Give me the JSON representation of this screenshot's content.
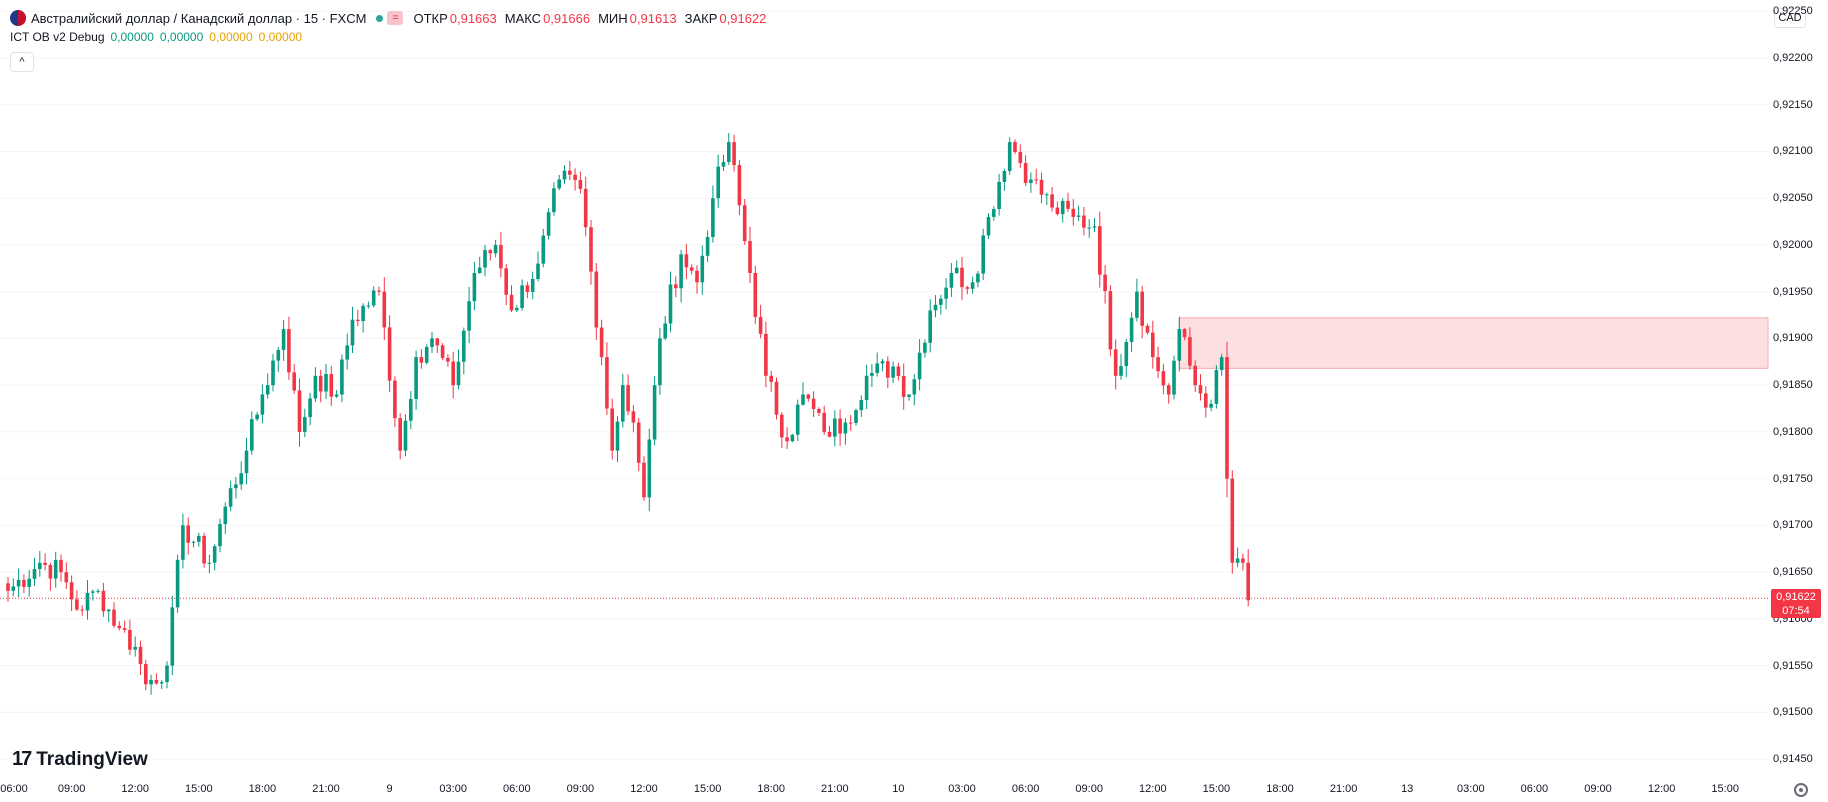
{
  "header": {
    "title": "Австралийский доллар / Канадский доллар · 15 · FXCM",
    "open_label": "ОТКР",
    "open_value": "0,91663",
    "high_label": "МАКС",
    "high_value": "0,91666",
    "low_label": "МИН",
    "low_value": "0,91613",
    "close_label": "ЗАКР",
    "close_value": "0,91622",
    "indicator_name": "ICT OB v2 Debug",
    "indicator_values": [
      "0,00000",
      "0,00000",
      "0,00000",
      "0,00000"
    ],
    "collapse_glyph": "^",
    "eq_glyph": "="
  },
  "currency": "CAD",
  "price_tag": {
    "price": "0,91622",
    "timer": "07:54"
  },
  "logo_text": "TradingView",
  "logo_mark": "17",
  "colors": {
    "up": "#089981",
    "down": "#f23645",
    "order_block": "#fcd9dc",
    "order_block_border": "#f7a9b0"
  },
  "icons": [
    "flag-icon",
    "eq-icon",
    "collapse-icon",
    "settings-icon"
  ],
  "chart_data": {
    "type": "candlestick",
    "symbol": "AUDCAD",
    "interval": "15",
    "y_axis": {
      "range": [
        0.91433,
        0.92262
      ],
      "ticks": [
        0.9225,
        0.922,
        0.9215,
        0.921,
        0.9205,
        0.92,
        0.9195,
        0.919,
        0.9185,
        0.918,
        0.9175,
        0.917,
        0.9165,
        0.916,
        0.9155,
        0.915,
        0.9145
      ],
      "tick_labels": [
        "0,92250",
        "0,92200",
        "0,92150",
        "0,92100",
        "0,92050",
        "0,92000",
        "0,91950",
        "0,91900",
        "0,91850",
        "0,91800",
        "0,91750",
        "0,91700",
        "0,91650",
        "0,91600",
        "0,91550",
        "0,91500",
        "0,91450"
      ]
    },
    "x_axis": {
      "bar_interval_minutes": 15,
      "first_bar": "08 06:00",
      "tick_labels": [
        "06:00",
        "09:00",
        "12:00",
        "15:00",
        "18:00",
        "21:00",
        "9",
        "03:00",
        "06:00",
        "09:00",
        "12:00",
        "15:00",
        "18:00",
        "21:00",
        "10",
        "03:00",
        "06:00",
        "09:00",
        "12:00",
        "15:00",
        "18:00",
        "21:00",
        "13",
        "03:00",
        "06:00",
        "09:00",
        "12:00",
        "15:00"
      ],
      "tick_bars": [
        0,
        12,
        24,
        36,
        48,
        60,
        72,
        84,
        96,
        108,
        120,
        132,
        144,
        156,
        168,
        180,
        192,
        204,
        216,
        228,
        240,
        252,
        264,
        276,
        288,
        300,
        312,
        324
      ]
    },
    "anchors": [
      [
        0,
        0.9163
      ],
      [
        6,
        0.9166
      ],
      [
        10,
        0.9165
      ],
      [
        13,
        0.9161
      ],
      [
        17,
        0.9163
      ],
      [
        21,
        0.9159
      ],
      [
        24,
        0.9157
      ],
      [
        26,
        0.9153
      ],
      [
        30,
        0.9155
      ],
      [
        33,
        0.917
      ],
      [
        38,
        0.9166
      ],
      [
        41,
        0.9172
      ],
      [
        45,
        0.9178
      ],
      [
        48,
        0.9184
      ],
      [
        52,
        0.9191
      ],
      [
        55,
        0.918
      ],
      [
        58,
        0.9186
      ],
      [
        62,
        0.9184
      ],
      [
        65,
        0.9192
      ],
      [
        70,
        0.9195
      ],
      [
        74,
        0.9178
      ],
      [
        77,
        0.9188
      ],
      [
        80,
        0.919
      ],
      [
        84,
        0.9185
      ],
      [
        88,
        0.9197
      ],
      [
        92,
        0.92
      ],
      [
        95,
        0.9193
      ],
      [
        100,
        0.9198
      ],
      [
        104,
        0.9207
      ],
      [
        108,
        0.9206
      ],
      [
        112,
        0.9188
      ],
      [
        114,
        0.9178
      ],
      [
        116,
        0.9185
      ],
      [
        118,
        0.9181
      ],
      [
        120,
        0.9173
      ],
      [
        123,
        0.919
      ],
      [
        127,
        0.9199
      ],
      [
        130,
        0.9196
      ],
      [
        133,
        0.9205
      ],
      [
        136,
        0.9211
      ],
      [
        140,
        0.9197
      ],
      [
        143,
        0.9186
      ],
      [
        147,
        0.9179
      ],
      [
        150,
        0.9184
      ],
      [
        154,
        0.918
      ],
      [
        158,
        0.9181
      ],
      [
        162,
        0.9186
      ],
      [
        167,
        0.9187
      ],
      [
        170,
        0.9184
      ],
      [
        174,
        0.9193
      ],
      [
        178,
        0.9197
      ],
      [
        182,
        0.9196
      ],
      [
        185,
        0.9203
      ],
      [
        189,
        0.9211
      ],
      [
        193,
        0.9207
      ],
      [
        197,
        0.9204
      ],
      [
        201,
        0.9203
      ],
      [
        205,
        0.9202
      ],
      [
        209,
        0.9186
      ],
      [
        213,
        0.9195
      ],
      [
        216,
        0.9188
      ],
      [
        219,
        0.9184
      ],
      [
        221,
        0.9191
      ],
      [
        224,
        0.9185
      ],
      [
        227,
        0.9183
      ],
      [
        229,
        0.9188
      ],
      [
        230,
        0.9175
      ],
      [
        231,
        0.9166
      ],
      [
        233,
        0.9166
      ],
      [
        234,
        0.9162
      ]
    ],
    "order_block": {
      "start_bar": 221,
      "top": 0.91922,
      "bottom": 0.91868
    },
    "last_price": 0.91622
  }
}
